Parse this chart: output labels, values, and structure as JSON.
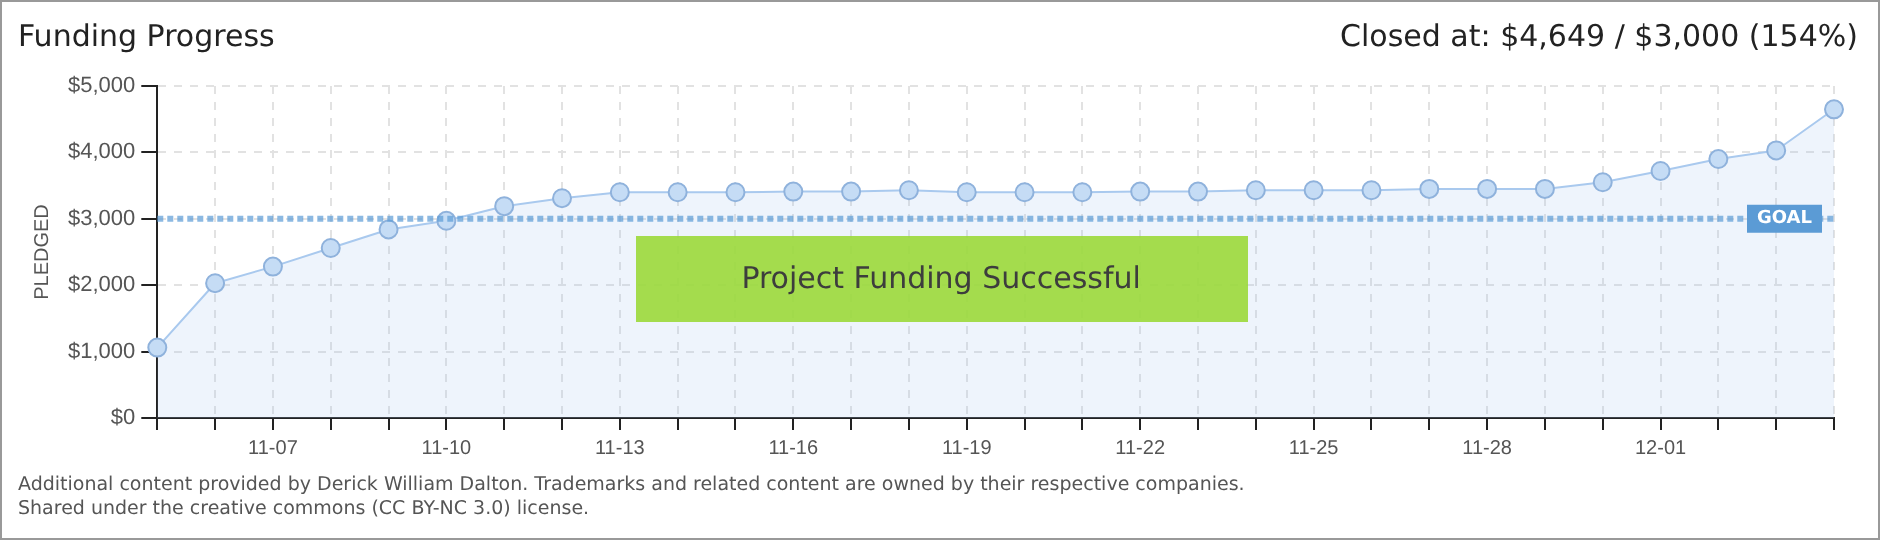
{
  "chart_data": {
    "type": "area",
    "title": "Funding Progress",
    "subtitle": "Closed at: $4,649 / $3,000 (154%)",
    "ylabel": "PLEDGED",
    "categories": [
      null,
      null,
      "11-07",
      null,
      null,
      "11-10",
      null,
      null,
      "11-13",
      null,
      null,
      "11-16",
      null,
      null,
      "11-19",
      null,
      null,
      "11-22",
      null,
      null,
      "11-25",
      null,
      null,
      "11-28",
      null,
      null,
      "12-01",
      null,
      null,
      null
    ],
    "series": [
      {
        "color": "#a9c9ee",
        "values": [
          1060,
          2030,
          2280,
          2560,
          2840,
          2970,
          3190,
          3310,
          3400,
          3400,
          3400,
          3410,
          3410,
          3430,
          3400,
          3400,
          3400,
          3410,
          3410,
          3430,
          3430,
          3430,
          3450,
          3450,
          3450,
          3550,
          3720,
          3900,
          4030,
          4649
        ]
      }
    ],
    "ylim": [
      0,
      5000
    ],
    "yticks": [
      {
        "value": 0,
        "label": "$0"
      },
      {
        "value": 1000,
        "label": "$1,000"
      },
      {
        "value": 2000,
        "label": "$2,000"
      },
      {
        "value": 3000,
        "label": "$3,000"
      },
      {
        "value": 4000,
        "label": "$4,000"
      },
      {
        "value": 5000,
        "label": "$5,000"
      }
    ],
    "grid": true,
    "marker": "circle",
    "legend": false,
    "ref_lines": [
      {
        "axis": "y",
        "value": 3000,
        "label": "GOAL",
        "color": "#5b9bd5",
        "line_style": "dotted"
      }
    ],
    "annotations": [
      "Project Funding Successful",
      "Additional content provided by Derick William Dalton. Trademarks and related content are owned by their respective companies.",
      "Shared under the creative commons (CC BY-NC 3.0) license."
    ]
  }
}
